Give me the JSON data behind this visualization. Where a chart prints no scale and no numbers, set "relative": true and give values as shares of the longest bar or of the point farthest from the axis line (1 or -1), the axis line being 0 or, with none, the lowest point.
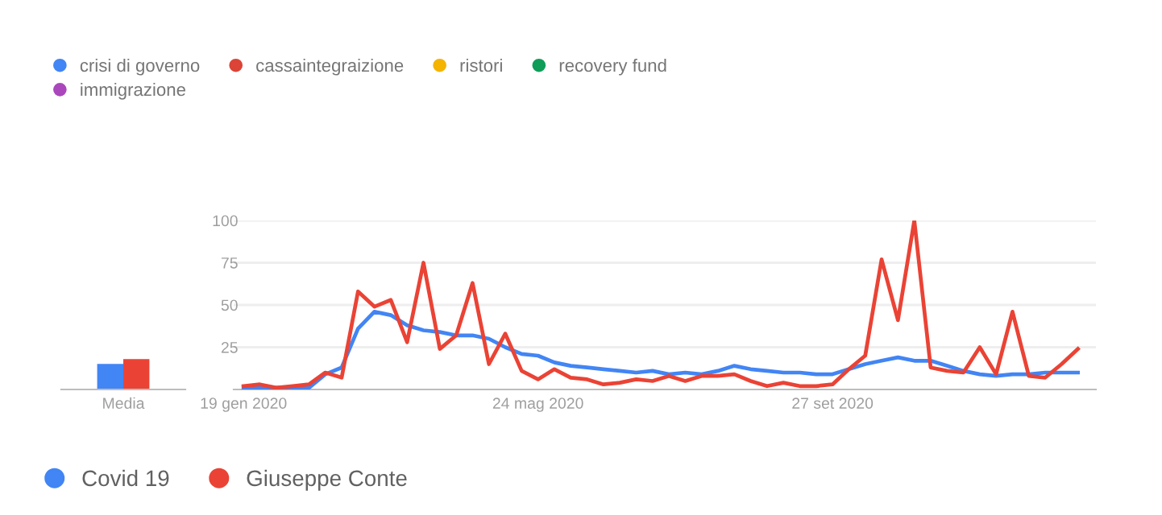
{
  "chart_data": [
    {
      "type": "bar",
      "categories": [
        "Media"
      ],
      "relative": true,
      "legend": false,
      "series": [
        {
          "color": "#4285f4",
          "values": [
            0.84
          ]
        },
        {
          "color": "#ea4335",
          "values": [
            1
          ]
        }
      ]
    },
    {
      "type": "line",
      "ylim": [
        0,
        100
      ],
      "yticks": [
        25,
        50,
        75,
        100
      ],
      "grid": "y",
      "legend": "left",
      "marker": "none",
      "line_style": "solid",
      "categories": [
        "19 gen 2020",
        null,
        null,
        null,
        null,
        null,
        null,
        null,
        null,
        null,
        null,
        null,
        null,
        null,
        null,
        null,
        null,
        null,
        "24 mag 2020",
        null,
        null,
        null,
        null,
        null,
        null,
        null,
        null,
        null,
        null,
        null,
        null,
        null,
        null,
        null,
        null,
        null,
        "27 set 2020",
        null,
        null,
        null,
        null,
        null,
        null,
        null,
        null,
        null,
        null,
        null,
        null,
        null,
        null,
        null
      ],
      "series": [
        {
          "name": "crisi di governo",
          "color": "#4285f4",
          "values": [
            null,
            null,
            null,
            null,
            null,
            null,
            null,
            null,
            null,
            null,
            null,
            null,
            null,
            null,
            null,
            null,
            null,
            null,
            null,
            null,
            null,
            null,
            null,
            null,
            null,
            null,
            null,
            null,
            null,
            null,
            null,
            null,
            null,
            null,
            null,
            null,
            null,
            null,
            null,
            null,
            null,
            null,
            null,
            null,
            null,
            null,
            null,
            null,
            null,
            null,
            null,
            null
          ]
        },
        {
          "name": "cassaintegraizione",
          "color": "#db4437",
          "values": [
            null,
            null,
            null,
            null,
            null,
            null,
            null,
            null,
            null,
            null,
            null,
            null,
            null,
            null,
            null,
            null,
            null,
            null,
            null,
            null,
            null,
            null,
            null,
            null,
            null,
            null,
            null,
            null,
            null,
            null,
            null,
            null,
            null,
            null,
            null,
            null,
            null,
            null,
            null,
            null,
            null,
            null,
            null,
            null,
            null,
            null,
            null,
            null,
            null,
            null,
            null,
            null
          ]
        },
        {
          "name": "ristori",
          "color": "#f4b400",
          "values": [
            null,
            null,
            null,
            null,
            null,
            null,
            null,
            null,
            null,
            null,
            null,
            null,
            null,
            null,
            null,
            null,
            null,
            null,
            null,
            null,
            null,
            null,
            null,
            null,
            null,
            null,
            null,
            null,
            null,
            null,
            null,
            null,
            null,
            null,
            null,
            null,
            null,
            null,
            null,
            null,
            null,
            null,
            null,
            null,
            null,
            null,
            null,
            null,
            null,
            null,
            null,
            null
          ]
        },
        {
          "name": "recovery fund",
          "color": "#0f9d58",
          "values": [
            null,
            null,
            null,
            null,
            null,
            null,
            null,
            null,
            null,
            null,
            null,
            null,
            null,
            null,
            null,
            null,
            null,
            null,
            null,
            null,
            null,
            null,
            null,
            null,
            null,
            null,
            null,
            null,
            null,
            null,
            null,
            null,
            null,
            null,
            null,
            null,
            null,
            null,
            null,
            null,
            null,
            null,
            null,
            null,
            null,
            null,
            null,
            null,
            null,
            null,
            null,
            null
          ]
        },
        {
          "name": "immigrazione",
          "color": "#ab47bc",
          "values": [
            null,
            null,
            null,
            null,
            null,
            null,
            null,
            null,
            null,
            null,
            null,
            null,
            null,
            null,
            null,
            null,
            null,
            null,
            null,
            null,
            null,
            null,
            null,
            null,
            null,
            null,
            null,
            null,
            null,
            null,
            null,
            null,
            null,
            null,
            null,
            null,
            null,
            null,
            null,
            null,
            null,
            null,
            null,
            null,
            null,
            null,
            null,
            null,
            null,
            null,
            null,
            null
          ]
        },
        {
          "name": "Covid 19",
          "color": "#4285f4",
          "values": [
            1,
            1,
            1,
            1,
            1,
            9,
            13,
            36,
            46,
            44,
            38,
            35,
            34,
            32,
            32,
            30,
            25,
            21,
            20,
            16,
            14,
            13,
            12,
            11,
            10,
            11,
            9,
            10,
            9,
            11,
            14,
            12,
            11,
            10,
            10,
            9,
            9,
            12,
            15,
            17,
            19,
            17,
            17,
            14,
            11,
            9,
            8,
            9,
            9,
            10,
            10,
            10
          ]
        },
        {
          "name": "Giuseppe Conte",
          "color": "#ea4335",
          "values": [
            2,
            3,
            1,
            2,
            3,
            10,
            7,
            58,
            49,
            53,
            28,
            75,
            24,
            32,
            63,
            15,
            33,
            11,
            6,
            12,
            7,
            6,
            3,
            4,
            6,
            5,
            8,
            5,
            8,
            8,
            9,
            5,
            2,
            4,
            2,
            2,
            3,
            12,
            20,
            77,
            41,
            100,
            13,
            11,
            10,
            25,
            9,
            46,
            8,
            7,
            15,
            24
          ]
        }
      ]
    }
  ]
}
